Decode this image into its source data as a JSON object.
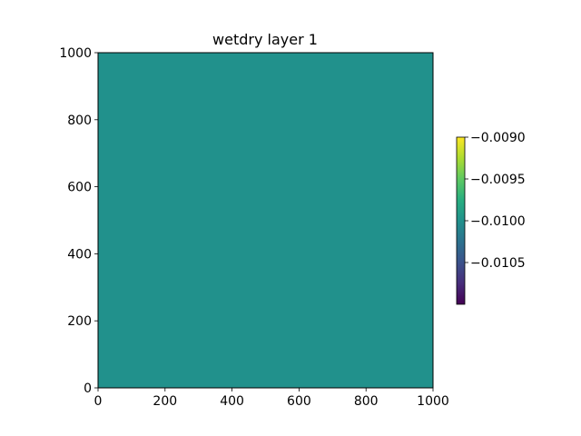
{
  "chart_data": {
    "type": "heatmap",
    "title": "wetdry layer 1",
    "xlabel": "",
    "ylabel": "",
    "xlim": [
      0,
      1000
    ],
    "ylim": [
      0,
      1000
    ],
    "x_ticks": [
      0,
      200,
      400,
      600,
      800,
      1000
    ],
    "y_ticks": [
      0,
      200,
      400,
      600,
      800,
      1000
    ],
    "field_value": -0.01,
    "field_color": "#21918c",
    "colormap": "viridis",
    "grid": false,
    "colorbar": {
      "location": "right",
      "range": [
        -0.011,
        -0.009
      ],
      "ticks": [
        -0.0105,
        -0.01,
        -0.0095,
        -0.009
      ],
      "tick_labels": [
        "−0.0105",
        "−0.0100",
        "−0.0095",
        "−0.0090"
      ]
    }
  }
}
